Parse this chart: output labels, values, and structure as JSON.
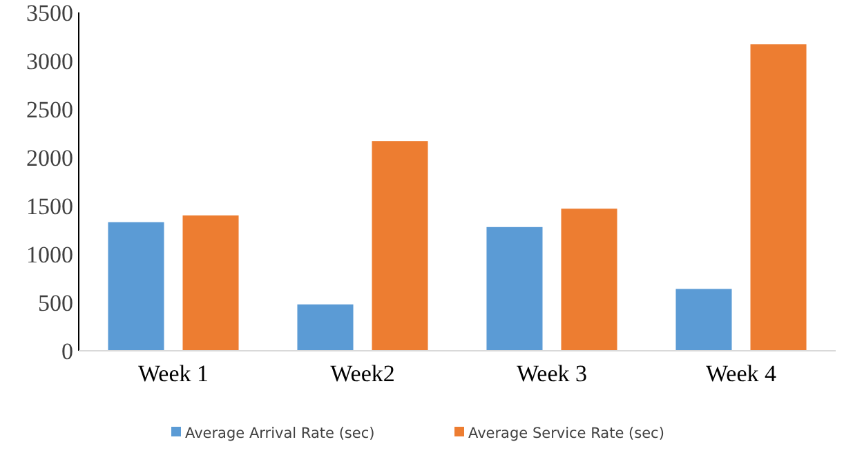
{
  "chart_data": {
    "type": "bar",
    "categories": [
      "Week 1",
      "Week2",
      "Week 3",
      "Week 4"
    ],
    "series": [
      {
        "name": "Average Arrival Rate (sec)",
        "color": "#5b9bd5",
        "values": [
          1330,
          480,
          1280,
          640
        ]
      },
      {
        "name": "Average Service Rate (sec)",
        "color": "#ed7d31",
        "values": [
          1400,
          2170,
          1470,
          3170
        ]
      }
    ],
    "ylim": [
      0,
      3500
    ],
    "yticks": [
      0,
      500,
      1000,
      1500,
      2000,
      2500,
      3000,
      3500
    ],
    "grid": false,
    "legend": "bottom"
  }
}
